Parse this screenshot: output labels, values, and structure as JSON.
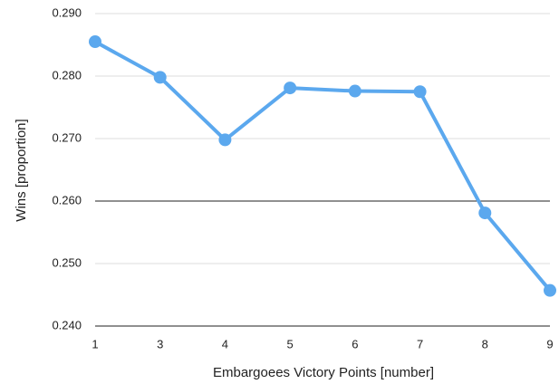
{
  "chart_data": {
    "type": "line",
    "x_label": "Embargoees Victory Points [number]",
    "y_label": "Wins [proportion]",
    "categories": [
      "1",
      "3",
      "4",
      "5",
      "6",
      "7",
      "8",
      "9"
    ],
    "series": [
      {
        "name": "Wins",
        "color": "#5ba8ee",
        "values": [
          0.2855,
          0.2798,
          0.2698,
          0.2781,
          0.2776,
          0.2775,
          0.2581,
          0.2457
        ]
      }
    ],
    "ylim": [
      0.24,
      0.29
    ],
    "yticks": [
      {
        "value": 0.24,
        "label": "0.240"
      },
      {
        "value": 0.25,
        "label": "0.250"
      },
      {
        "value": 0.26,
        "label": "0.260"
      },
      {
        "value": 0.27,
        "label": "0.270"
      },
      {
        "value": 0.28,
        "label": "0.280"
      },
      {
        "value": 0.29,
        "label": "0.290"
      }
    ],
    "baseline": 0.26,
    "grid": true
  }
}
